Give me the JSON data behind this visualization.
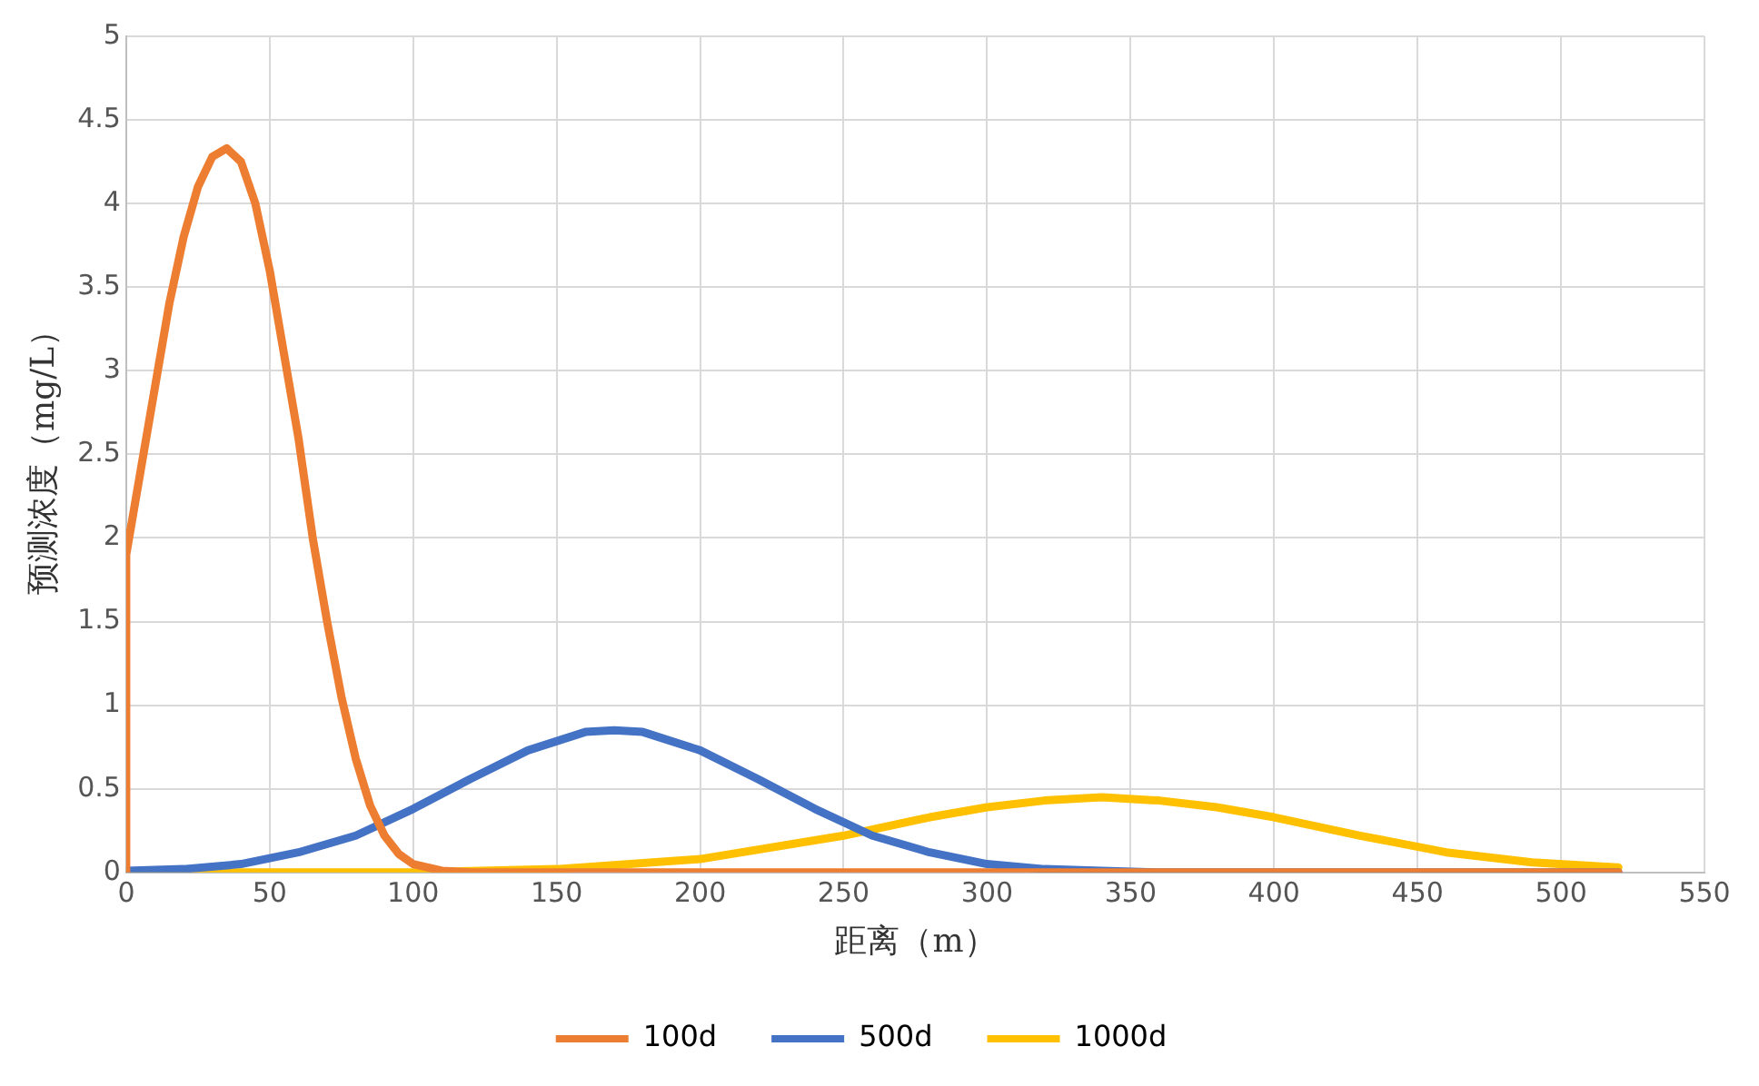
{
  "chart_data": {
    "type": "line",
    "xlabel": "距离（m）",
    "ylabel": "预测浓度（mg/L）",
    "xlim": [
      0,
      550
    ],
    "xticks": [
      0,
      50,
      100,
      150,
      200,
      250,
      300,
      350,
      400,
      450,
      500,
      550
    ],
    "ylim": [
      0,
      5
    ],
    "yticks": [
      0,
      0.5,
      1,
      1.5,
      2,
      2.5,
      3,
      3.5,
      4,
      4.5,
      5
    ],
    "grid": true,
    "legend": "bottom",
    "marker": "none",
    "line_style": "solid",
    "series": [
      {
        "name": "100d",
        "color": "#ed7d31",
        "x": [
          0,
          0,
          5,
          10,
          15,
          20,
          25,
          30,
          35,
          40,
          45,
          50,
          55,
          60,
          65,
          70,
          75,
          80,
          85,
          90,
          95,
          100,
          110,
          120,
          200,
          300,
          400,
          520
        ],
        "values": [
          0,
          1.9,
          2.4,
          2.9,
          3.4,
          3.8,
          4.1,
          4.28,
          4.33,
          4.25,
          4,
          3.6,
          3.1,
          2.6,
          2,
          1.5,
          1.05,
          0.68,
          0.4,
          0.22,
          0.11,
          0.05,
          0.01,
          0,
          0,
          0,
          0,
          0
        ]
      },
      {
        "name": "500d",
        "color": "#4472c4",
        "x": [
          0,
          20,
          40,
          60,
          80,
          100,
          120,
          140,
          160,
          170,
          180,
          200,
          220,
          240,
          260,
          280,
          300,
          320,
          340,
          360,
          440,
          520
        ],
        "values": [
          0.01,
          0.02,
          0.05,
          0.12,
          0.22,
          0.38,
          0.56,
          0.73,
          0.84,
          0.85,
          0.84,
          0.73,
          0.56,
          0.38,
          0.22,
          0.12,
          0.05,
          0.02,
          0.01,
          0,
          0,
          0
        ]
      },
      {
        "name": "1000d",
        "color": "#ffc000",
        "x": [
          0,
          100,
          150,
          200,
          250,
          280,
          300,
          320,
          340,
          360,
          380,
          400,
          430,
          460,
          490,
          520
        ],
        "values": [
          0,
          0,
          0.02,
          0.08,
          0.22,
          0.33,
          0.39,
          0.43,
          0.45,
          0.43,
          0.39,
          0.33,
          0.22,
          0.12,
          0.06,
          0.03
        ]
      }
    ]
  }
}
